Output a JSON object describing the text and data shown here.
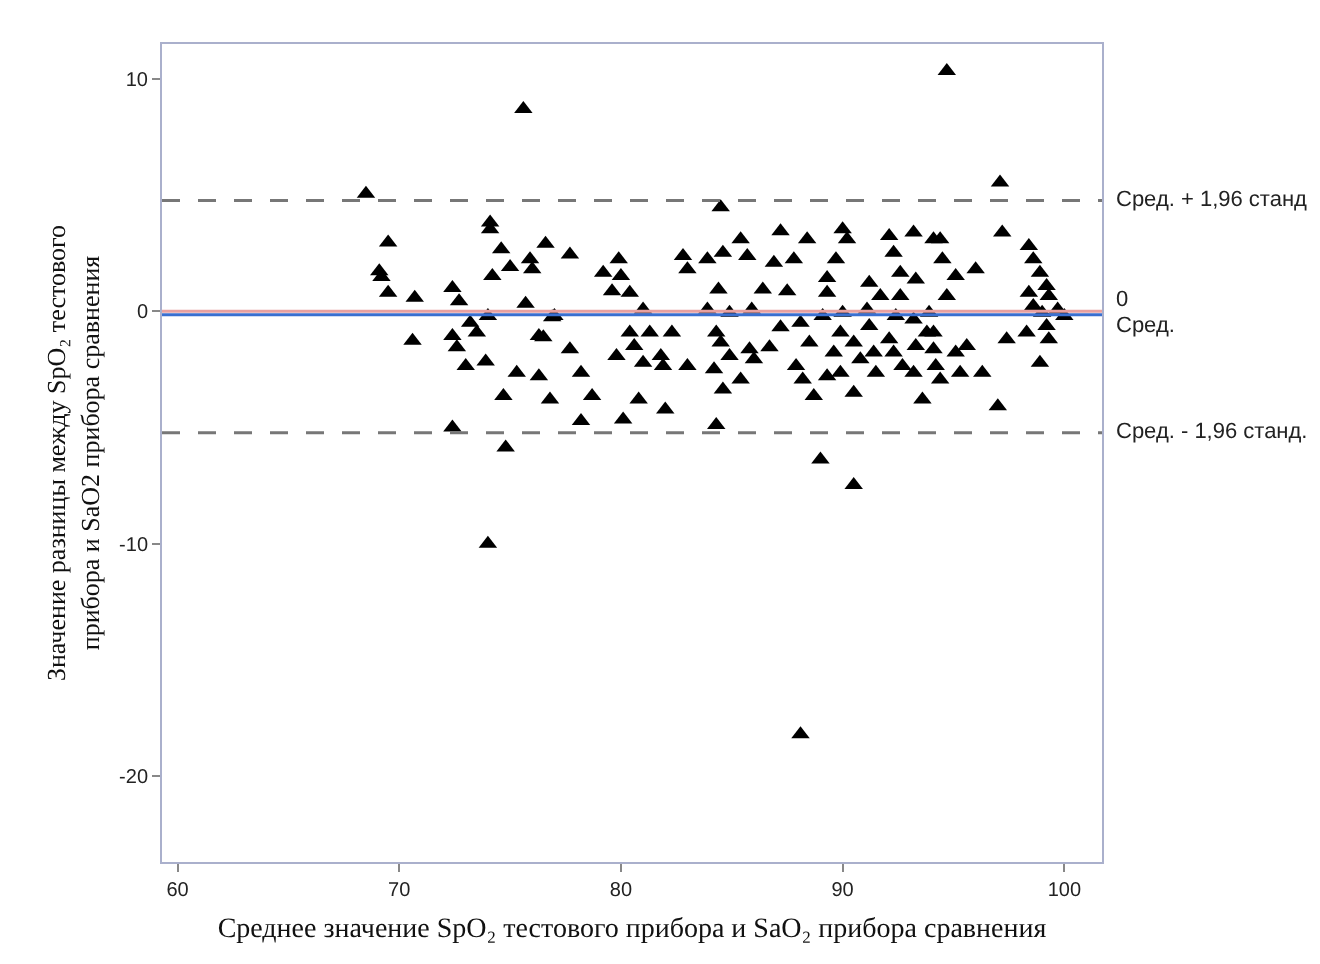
{
  "chart_data": {
    "type": "scatter",
    "xlabel": "Среднее значение SpO₂ тестового прибора и SaO₂ прибора сравнения",
    "ylabel": "Значение разницы между SpO₂ тестового\nприбора и SaO2 прибора сравнения",
    "xlim": [
      59.3,
      101.7
    ],
    "xticks": [
      60,
      70,
      80,
      90,
      100
    ],
    "ylim": [
      -23.7,
      11.5
    ],
    "yticks": [
      -20,
      -10,
      0,
      10
    ],
    "marker": "triangle",
    "series": [
      {
        "color": "#000000",
        "x": [
          68.5,
          69.5,
          69.1,
          69.2,
          69.5,
          70.7,
          70.6,
          72.4,
          72.7,
          72.4,
          72.6,
          73.0,
          73.2,
          73.5,
          72.4,
          74.0,
          73.9,
          74.1,
          74.1,
          74.2,
          74.6,
          75.0,
          74.7,
          74.8,
          75.6,
          75.3,
          75.9,
          76.0,
          75.7,
          76.5,
          76.3,
          76.8,
          76.6,
          76.9,
          74.0,
          88.1,
          77.7,
          77.0,
          76.3,
          77.7,
          78.2,
          78.7,
          78.2,
          79.2,
          79.9,
          80.0,
          79.6,
          80.4,
          81.0,
          80.4,
          81.3,
          80.6,
          79.8,
          81.0,
          80.8,
          80.1,
          82.0,
          82.3,
          81.8,
          81.9,
          83.0,
          82.8,
          83.0,
          83.9,
          84.4,
          83.9,
          84.5,
          84.6,
          85.4,
          85.7,
          84.9,
          84.3,
          84.5,
          84.9,
          84.2,
          84.6,
          85.4,
          84.3,
          85.9,
          86.4,
          86.9,
          87.2,
          87.8,
          87.5,
          85.8,
          86.7,
          86.0,
          87.2,
          88.1,
          88.4,
          88.5,
          87.9,
          88.2,
          88.7,
          89.0,
          89.3,
          89.3,
          89.1,
          89.7,
          90.0,
          90.2,
          89.9,
          89.6,
          89.9,
          89.3,
          90.5,
          90.5,
          90.0,
          90.5,
          90.8,
          91.2,
          91.1,
          91.7,
          91.2,
          91.4,
          91.5,
          92.1,
          92.3,
          92.6,
          92.6,
          92.4,
          92.1,
          92.3,
          92.7,
          93.2,
          93.3,
          93.2,
          93.3,
          93.2,
          93.6,
          93.9,
          94.1,
          94.1,
          94.7,
          97.1,
          94.4,
          94.5,
          95.1,
          96.0,
          94.7,
          93.8,
          94.1,
          94.2,
          94.4,
          95.1,
          95.6,
          95.3,
          96.3,
          97.0,
          97.2,
          97.4,
          98.3,
          98.9,
          98.4,
          98.6,
          98.9,
          99.2,
          99.3,
          98.4,
          98.6,
          99.0,
          99.7,
          100.0,
          99.2,
          99.3
        ],
        "values": [
          5.06,
          2.96,
          1.72,
          1.47,
          0.8,
          0.58,
          -1.27,
          1.0,
          0.43,
          -1.06,
          -1.55,
          -2.36,
          -0.49,
          -0.92,
          -5.0,
          -0.2,
          -2.16,
          3.82,
          3.53,
          1.52,
          2.67,
          1.9,
          -3.65,
          -5.86,
          8.7,
          -2.65,
          2.24,
          1.81,
          0.32,
          -1.12,
          -2.8,
          -3.8,
          2.9,
          -0.26,
          -10.0,
          -18.2,
          2.44,
          -0.2,
          -1.07,
          -1.64,
          -2.65,
          -3.65,
          -4.72,
          1.66,
          2.24,
          1.52,
          0.86,
          0.8,
          0.08,
          -0.92,
          -0.92,
          -1.5,
          -1.93,
          -2.22,
          -3.8,
          -4.66,
          -4.23,
          -0.92,
          -1.93,
          -2.36,
          -2.36,
          2.38,
          1.81,
          2.24,
          0.94,
          0.08,
          4.48,
          2.52,
          3.1,
          2.38,
          -0.06,
          -0.92,
          -1.35,
          -1.93,
          -2.5,
          -3.37,
          -2.94,
          -4.89,
          0.08,
          0.94,
          2.09,
          3.44,
          2.24,
          0.86,
          -1.64,
          -1.55,
          -2.07,
          -0.69,
          -0.49,
          3.1,
          -1.35,
          -2.36,
          -2.94,
          -3.65,
          -6.38,
          1.43,
          0.8,
          -0.2,
          2.24,
          3.53,
          3.1,
          -0.92,
          -1.78,
          -2.65,
          -2.8,
          -3.51,
          -7.48,
          -0.06,
          -1.35,
          -2.07,
          1.23,
          0.08,
          0.66,
          -0.64,
          -1.78,
          -2.65,
          3.24,
          2.52,
          1.66,
          0.66,
          -0.2,
          -1.21,
          -1.78,
          -2.36,
          3.39,
          1.37,
          -0.35,
          -1.5,
          -2.65,
          -3.8,
          -0.06,
          3.1,
          -0.92,
          10.34,
          5.54,
          3.1,
          2.24,
          1.52,
          1.81,
          0.66,
          -0.92,
          -1.64,
          -2.36,
          -2.94,
          -1.78,
          -1.5,
          -2.65,
          -2.65,
          -4.09,
          3.39,
          -1.21,
          -0.92,
          -2.22,
          2.81,
          2.24,
          1.66,
          1.09,
          0.66,
          0.8,
          0.23,
          -0.06,
          0.08,
          -0.2,
          -0.64,
          -1.21
        ]
      }
    ],
    "ref_lines": [
      {
        "axis": "y",
        "value": 4.77,
        "label": "Сред. + 1,96 станд",
        "color": "#777777",
        "line_style": "dashed"
      },
      {
        "axis": "y",
        "value": 0,
        "label": "0",
        "color": "#e8a0a0",
        "line_style": "solid"
      },
      {
        "axis": "y",
        "value": -0.15,
        "label": "Сред.",
        "color": "#3a6fd0",
        "line_style": "solid"
      },
      {
        "axis": "y",
        "value": -5.23,
        "label": "Сред. - 1,96 станд.",
        "color": "#777777",
        "line_style": "dashed"
      }
    ]
  }
}
